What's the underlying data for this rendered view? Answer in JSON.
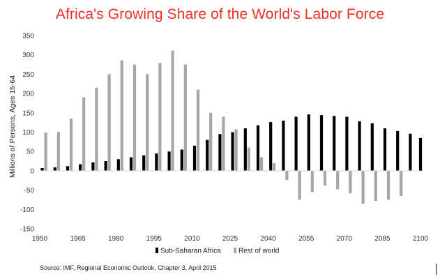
{
  "title": "Africa's Growing Share of the World's Labor Force",
  "source": "Source: IMF, Regional Economic Outlook, Chapter 3, April 2015",
  "chart_data": {
    "type": "bar",
    "title": "Africa's Growing Share of the World's Labor Force",
    "xlabel": "",
    "ylabel": "Millions of Persons, Ages 15-64",
    "ylim": [
      -150,
      350
    ],
    "yticks": [
      -150,
      -100,
      -50,
      0,
      50,
      100,
      150,
      200,
      250,
      300,
      350
    ],
    "xlim": [
      1950,
      2100
    ],
    "xticks": [
      1950,
      1965,
      1980,
      1995,
      2010,
      2025,
      2040,
      2055,
      2070,
      2085,
      2100
    ],
    "grid": false,
    "legend_position": "bottom",
    "categories": [
      1950,
      1955,
      1960,
      1965,
      1970,
      1975,
      1980,
      1985,
      1990,
      1995,
      2000,
      2005,
      2010,
      2015,
      2020,
      2025,
      2030,
      2035,
      2040,
      2045,
      2050,
      2055,
      2060,
      2065,
      2070,
      2075,
      2080,
      2085,
      2090,
      2095
    ],
    "series": [
      {
        "name": "Sub-Saharan Africa",
        "color": "#000000",
        "values": [
          7,
          9,
          12,
          17,
          22,
          25,
          30,
          35,
          40,
          45,
          50,
          55,
          65,
          80,
          95,
          100,
          110,
          118,
          126,
          130,
          140,
          146,
          144,
          142,
          140,
          128,
          123,
          110,
          103,
          96
        ]
      },
      {
        "name": "Rest of world",
        "color": "#a6a6a6",
        "values": [
          99,
          101,
          135,
          190,
          215,
          250,
          286,
          275,
          250,
          279,
          311,
          275,
          210,
          150,
          140,
          107,
          60,
          35,
          20,
          -24,
          -75,
          -55,
          -38,
          -48,
          -58,
          -85,
          -78,
          -75,
          -65,
          null
        ]
      }
    ],
    "last_point": {
      "x": 2100,
      "series": "Sub-Saharan Africa",
      "value": 85
    }
  }
}
